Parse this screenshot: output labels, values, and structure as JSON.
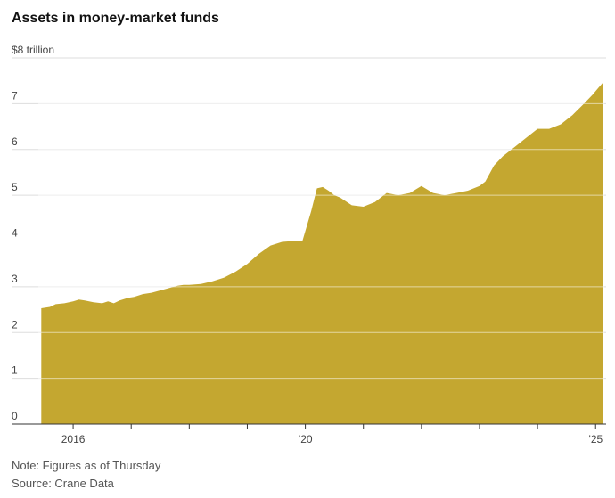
{
  "title": "Assets in money-market funds",
  "note": "Note: Figures as of Thursday",
  "source": "Source: Crane Data",
  "colors": {
    "area": "#c4a730",
    "grid": "#dddddd",
    "axis": "#333333"
  },
  "chart_data": {
    "type": "area",
    "unit_label": "$8 trillion",
    "ylim": [
      0,
      8
    ],
    "xlim": [
      2015.4,
      2025.15
    ],
    "grid": true,
    "y_ticks": [
      {
        "value": 8,
        "label": "$8 trillion"
      },
      {
        "value": 7,
        "label": "7"
      },
      {
        "value": 6,
        "label": "6"
      },
      {
        "value": 5,
        "label": "5"
      },
      {
        "value": 4,
        "label": "4"
      },
      {
        "value": 3,
        "label": "3"
      },
      {
        "value": 2,
        "label": "2"
      },
      {
        "value": 1,
        "label": "1"
      },
      {
        "value": 0,
        "label": "0"
      }
    ],
    "x_tick_marks": [
      2016,
      2017,
      2018,
      2019,
      2020,
      2021,
      2022,
      2023,
      2024,
      2025
    ],
    "x_labels": [
      {
        "value": 2016,
        "label": "2016"
      },
      {
        "value": 2020,
        "label": "’20"
      },
      {
        "value": 2025,
        "label": "’25"
      }
    ],
    "series": [
      {
        "x": [
          2015.45,
          2015.6,
          2015.7,
          2015.85,
          2016.0,
          2016.1,
          2016.2,
          2016.35,
          2016.5,
          2016.6,
          2016.7,
          2016.8,
          2016.95,
          2017.05,
          2017.2,
          2017.35,
          2017.5,
          2017.65,
          2017.8,
          2017.9,
          2018.0,
          2018.2,
          2018.4,
          2018.6,
          2018.8,
          2019.0,
          2019.2,
          2019.4,
          2019.6,
          2019.8,
          2019.95,
          2020.1,
          2020.2,
          2020.3,
          2020.4,
          2020.5,
          2020.6,
          2020.8,
          2021.0,
          2021.2,
          2021.4,
          2021.6,
          2021.8,
          2022.0,
          2022.2,
          2022.4,
          2022.6,
          2022.8,
          2023.0,
          2023.1,
          2023.25,
          2023.4,
          2023.6,
          2023.8,
          2024.0,
          2024.2,
          2024.4,
          2024.6,
          2024.8,
          2024.95,
          2025.05,
          2025.12
        ],
        "y": [
          2.53,
          2.56,
          2.62,
          2.64,
          2.68,
          2.72,
          2.7,
          2.66,
          2.64,
          2.68,
          2.64,
          2.7,
          2.76,
          2.78,
          2.84,
          2.87,
          2.92,
          2.97,
          3.02,
          3.04,
          3.04,
          3.06,
          3.12,
          3.2,
          3.33,
          3.5,
          3.72,
          3.9,
          3.98,
          4.0,
          4.0,
          4.65,
          5.15,
          5.18,
          5.1,
          5.0,
          4.95,
          4.78,
          4.75,
          4.85,
          5.05,
          5.0,
          5.05,
          5.2,
          5.05,
          5.0,
          5.05,
          5.1,
          5.2,
          5.3,
          5.65,
          5.85,
          6.05,
          6.25,
          6.45,
          6.45,
          6.55,
          6.75,
          7.0,
          7.2,
          7.35,
          7.45
        ]
      }
    ]
  }
}
